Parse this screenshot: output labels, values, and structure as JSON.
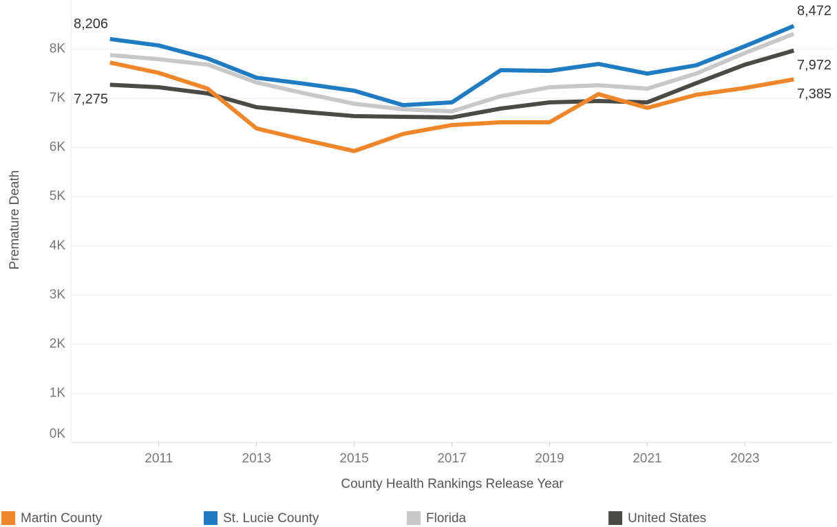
{
  "chart_data": {
    "type": "line",
    "x_label": "County Health Rankings Release Year",
    "y_label": "Premature Death",
    "x": [
      2010,
      2011,
      2012,
      2013,
      2014,
      2015,
      2016,
      2017,
      2018,
      2019,
      2020,
      2021,
      2022,
      2023,
      2024
    ],
    "series": [
      {
        "name": "Martin County",
        "color": "#f0862a",
        "values": [
          7727,
          7517,
          7197,
          6388,
          6151,
          5927,
          6276,
          6457,
          6513,
          6513,
          7085,
          6806,
          7071,
          7211,
          7385
        ],
        "value_labels": [
          null,
          null,
          null,
          null,
          null,
          null,
          null,
          null,
          null,
          null,
          null,
          null,
          null,
          null,
          "7,385"
        ]
      },
      {
        "name": "St. Lucie County",
        "color": "#1f7bc2",
        "values": [
          8206,
          8075,
          7810,
          7420,
          7294,
          7155,
          6862,
          6918,
          7573,
          7559,
          7699,
          7503,
          7671,
          8061,
          8472
        ],
        "value_labels": [
          "8,206",
          null,
          null,
          null,
          null,
          null,
          null,
          null,
          null,
          null,
          null,
          null,
          null,
          null,
          "8,472"
        ]
      },
      {
        "name": "Florida",
        "color": "#c8c8c8",
        "values": [
          7880,
          7796,
          7685,
          7322,
          7099,
          6890,
          6778,
          6736,
          7043,
          7225,
          7266,
          7197,
          7503,
          7922,
          8312
        ]
      },
      {
        "name": "United States",
        "color": "#4a4a46",
        "values": [
          7275,
          7225,
          7099,
          6820,
          6722,
          6639,
          6625,
          6611,
          6792,
          6918,
          6946,
          6918,
          7308,
          7685,
          7972
        ],
        "value_labels": [
          "7,275",
          null,
          null,
          null,
          null,
          null,
          null,
          null,
          null,
          null,
          null,
          null,
          null,
          null,
          "7,972"
        ]
      }
    ],
    "xlim": [
      2009.2,
      2024.8
    ],
    "xticks": [
      2011,
      2013,
      2015,
      2017,
      2019,
      2021,
      2023
    ],
    "ylim": [
      0,
      9000
    ],
    "yticks": [
      {
        "value": 0,
        "label": "0K"
      },
      {
        "value": 1000,
        "label": "1K"
      },
      {
        "value": 2000,
        "label": "2K"
      },
      {
        "value": 3000,
        "label": "3K"
      },
      {
        "value": 4000,
        "label": "4K"
      },
      {
        "value": 5000,
        "label": "5K"
      },
      {
        "value": 6000,
        "label": "6K"
      },
      {
        "value": 7000,
        "label": "7K"
      },
      {
        "value": 8000,
        "label": "8K"
      }
    ],
    "grid": true,
    "legend": "bottom"
  }
}
